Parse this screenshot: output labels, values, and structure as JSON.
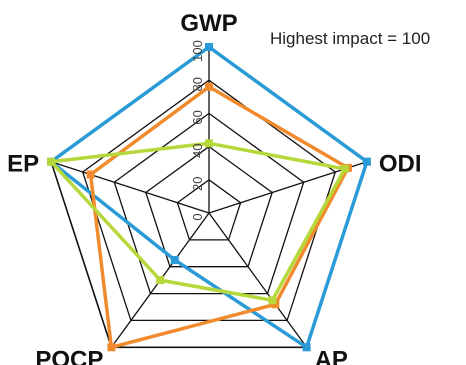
{
  "chart_data": {
    "type": "radar",
    "annotation": "Highest impact = 100",
    "axes": [
      "GWP",
      "ODI",
      "AP",
      "POCP",
      "EP"
    ],
    "ticks": [
      0,
      20,
      40,
      60,
      80,
      100
    ],
    "range": [
      0,
      100
    ],
    "grid": true,
    "series": [
      {
        "color": "#2a9bd6",
        "values": [
          100,
          100,
          100,
          35,
          100
        ]
      },
      {
        "color": "#f08a2c",
        "values": [
          76,
          88,
          68,
          100,
          75
        ]
      },
      {
        "color": "#b6d83a",
        "values": [
          42,
          86,
          65,
          50,
          100
        ]
      }
    ]
  }
}
